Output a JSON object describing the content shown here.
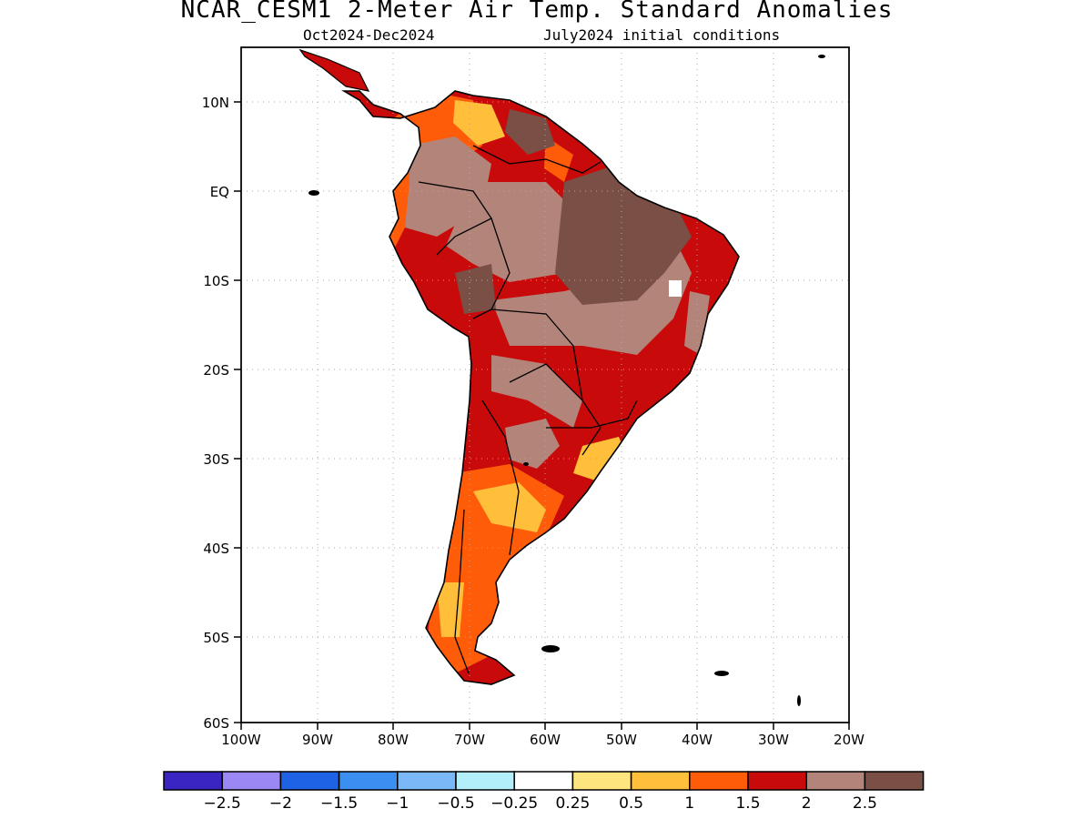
{
  "header": {
    "title": "NCAR_CESM1 2-Meter Air Temp. Standard Anomalies",
    "period": "Oct2024-Dec2024",
    "init": "July2024 initial conditions"
  },
  "map": {
    "region": "South America",
    "lon_range": [
      -100,
      -20
    ],
    "lat_range": [
      -60,
      15
    ],
    "lat_ticks": [
      "10N",
      "EQ",
      "10S",
      "20S",
      "30S",
      "40S",
      "50S",
      "60S"
    ],
    "lon_ticks": [
      "100W",
      "90W",
      "80W",
      "70W",
      "60W",
      "50W",
      "40W",
      "30W",
      "20W"
    ],
    "grid": "dotted"
  },
  "colorbar": {
    "colors": [
      "#3a25c3",
      "#9b88f5",
      "#1e62e5",
      "#3b8ff0",
      "#7ab8f7",
      "#b3eefb",
      "#ffffff",
      "#ffe57e",
      "#ffbf3a",
      "#ff5c0a",
      "#c80a0a",
      "#b3847a",
      "#7a4f45"
    ],
    "labels": [
      "-2.5",
      "-2",
      "-1.5",
      "-1",
      "-0.5",
      "-0.25",
      "0.25",
      "0.5",
      "1",
      "1.5",
      "2",
      "2.5"
    ]
  }
}
